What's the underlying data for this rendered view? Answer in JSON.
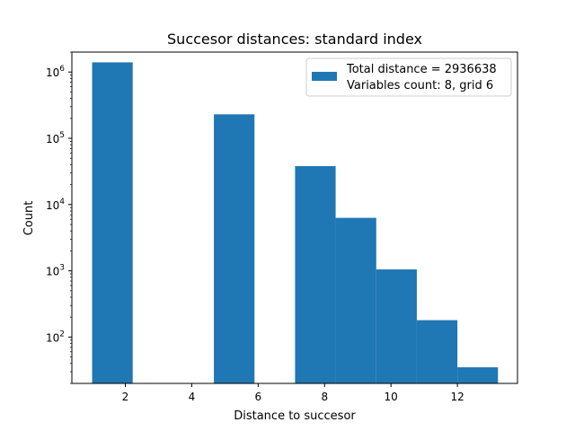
{
  "chart_data": {
    "type": "bar",
    "title": "Succesor distances:  standard index",
    "xlabel": "Distance to succesor",
    "ylabel": "Count",
    "xlim": [
      0.39,
      13.81
    ],
    "ylim": [
      20,
      2000000
    ],
    "yscale": "log",
    "x_ticks": [
      2,
      4,
      6,
      8,
      10,
      12
    ],
    "y_ticks": [
      {
        "value": 100,
        "base": "10",
        "exp": "2"
      },
      {
        "value": 1000,
        "base": "10",
        "exp": "3"
      },
      {
        "value": 10000,
        "base": "10",
        "exp": "4"
      },
      {
        "value": 100000,
        "base": "10",
        "exp": "5"
      },
      {
        "value": 1000000,
        "base": "10",
        "exp": "6"
      }
    ],
    "bins": [
      {
        "x0": 1.0,
        "x1": 2.222,
        "count": 1400000
      },
      {
        "x0": 4.667,
        "x1": 5.889,
        "count": 230000
      },
      {
        "x0": 7.111,
        "x1": 8.333,
        "count": 38000
      },
      {
        "x0": 8.333,
        "x1": 9.556,
        "count": 6300
      },
      {
        "x0": 9.556,
        "x1": 10.778,
        "count": 1050
      },
      {
        "x0": 10.778,
        "x1": 12.0,
        "count": 180
      },
      {
        "x0": 12.0,
        "x1": 13.222,
        "count": 35
      }
    ],
    "color": "#1f77b4",
    "legend": {
      "placement": "upper-right",
      "line1": "Total distance = 2936638",
      "line2": "Variables count: 8, grid 6"
    }
  }
}
